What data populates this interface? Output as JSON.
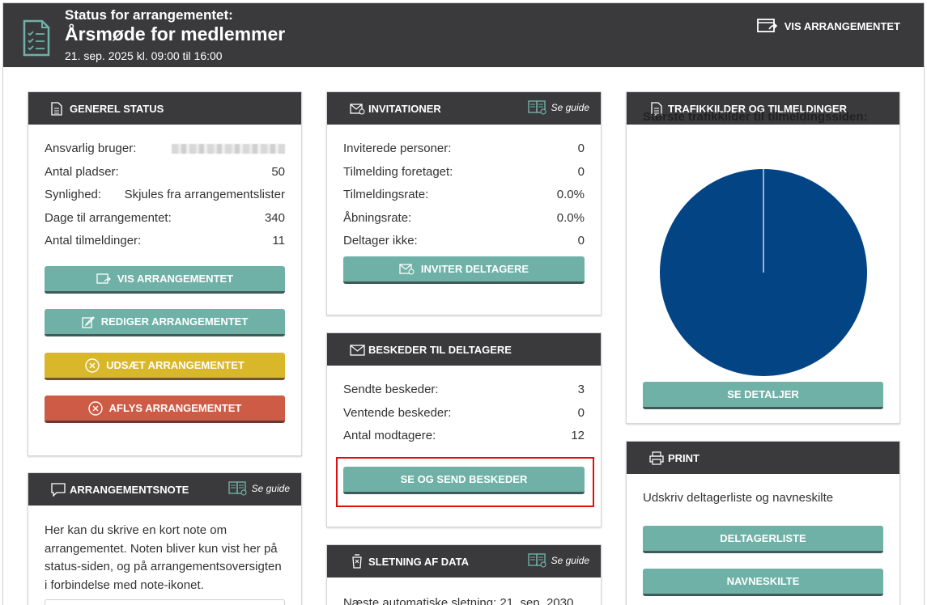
{
  "header": {
    "pre_title": "Status for arrangementet:",
    "title": "Årsmøde for medlemmer",
    "date": "21. sep. 2025 kl. 09:00 til 16:00",
    "vis_label": "VIS ARRANGEMENTET"
  },
  "general": {
    "title": "GENEREL STATUS",
    "rows": [
      {
        "label": "Ansvarlig bruger:",
        "value": ""
      },
      {
        "label": "Antal pladser:",
        "value": "50"
      },
      {
        "label": "Synlighed:",
        "value": "Skjules fra arrangementslister"
      },
      {
        "label": "Dage til arrangementet:",
        "value": "340"
      },
      {
        "label": "Antal tilmeldinger:",
        "value": "11"
      }
    ],
    "btn_vis": "VIS ARRANGEMENTET",
    "btn_rediger": "REDIGER ARRANGEMENTET",
    "btn_udsaet": "UDSÆT ARRANGEMENTET",
    "btn_aflys": "AFLYS ARRANGEMENTET"
  },
  "note": {
    "title": "ARRANGEMENTSNOTE",
    "guide": "Se guide",
    "text": "Her kan du skrive en kort note om arrangementet. Noten bliver kun vist her på status-siden, og på arrangementsoversigten i forbindelse med note-ikonet."
  },
  "invitations": {
    "title": "INVITATIONER",
    "guide": "Se guide",
    "rows": [
      {
        "label": "Inviterede personer:",
        "value": "0"
      },
      {
        "label": "Tilmelding foretaget:",
        "value": "0"
      },
      {
        "label": "Tilmeldingsrate:",
        "value": "0.0%"
      },
      {
        "label": "Åbningsrate:",
        "value": "0.0%"
      },
      {
        "label": "Deltager ikke:",
        "value": "0"
      }
    ],
    "btn": "INVITER DELTAGERE"
  },
  "messages": {
    "title": "BESKEDER TIL DELTAGERE",
    "rows": [
      {
        "label": "Sendte beskeder:",
        "value": "3"
      },
      {
        "label": "Ventende beskeder:",
        "value": "0"
      },
      {
        "label": "Antal modtagere:",
        "value": "12"
      }
    ],
    "btn": "SE OG SEND BESKEDER"
  },
  "deletion": {
    "title": "SLETNING AF DATA",
    "guide": "Se guide",
    "text": "Næste automatiske sletning: 21. sep. 2030"
  },
  "traffic": {
    "title": "TRAFIKKILDER OG TILMELDINGER",
    "chart_title": "Største trafikkilder til tilmeldingssiden:",
    "btn": "SE DETALJER"
  },
  "print": {
    "title": "PRINT",
    "text": "Udskriv deltagerliste og navneskilte",
    "btn_list": "DELTAGERLISTE",
    "btn_badges": "NAVNESKILTE"
  },
  "colors": {
    "header_bg": "#3a3a3d",
    "teal": "#6fb1a7",
    "yellow": "#d8b72a",
    "red": "#cd5b45",
    "pie": "#034485"
  },
  "chart_data": {
    "type": "pie",
    "title": "Største trafikkilder til tilmeldingssiden:",
    "categories": [
      ""
    ],
    "values": [
      100
    ],
    "colors": [
      "#034485"
    ]
  }
}
